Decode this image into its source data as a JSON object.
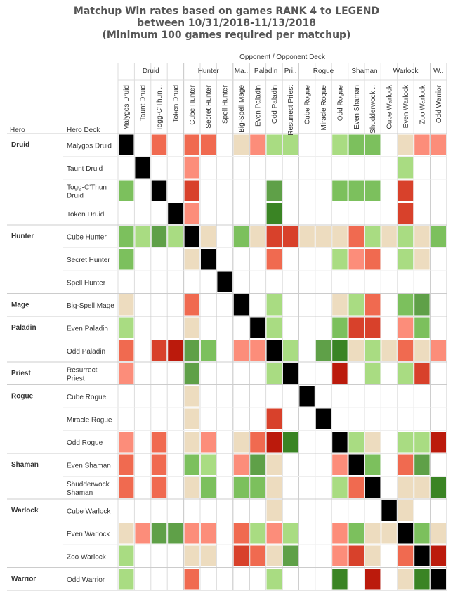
{
  "chart_data": {
    "type": "heatmap",
    "title": [
      "Matchup Win rates based on games RANK 4 to LEGEND",
      "between 10/31/2018-11/13/2018",
      "(Minimum 100 games required per matchup)"
    ],
    "column_header": "Opponent  /  Opponent Deck",
    "row_header_hero": "Hero",
    "row_header_deck": "Hero Deck",
    "column_groups": [
      {
        "label": "Druid",
        "span": 4
      },
      {
        "label": "Hunter",
        "span": 3
      },
      {
        "label": "Ma..",
        "span": 1
      },
      {
        "label": "Paladin",
        "span": 2
      },
      {
        "label": "Pri..",
        "span": 1
      },
      {
        "label": "Rogue",
        "span": 3
      },
      {
        "label": "Shaman",
        "span": 2
      },
      {
        "label": "Warlock",
        "span": 3
      },
      {
        "label": "W..",
        "span": 1
      }
    ],
    "columns": [
      "Malygos Druid",
      "Taunt Druid",
      "Togg-C'Thun ..",
      "Token Druid",
      "Cube Hunter",
      "Secret Hunter",
      "Spell Hunter",
      "Big-Spell Mage",
      "Even Paladin",
      "Odd Paladin",
      "Resurrect Priest",
      "Cube Rogue",
      "Miracle Rogue",
      "Odd Rogue",
      "Even Shaman",
      "Shudderwock ..",
      "Cube Warlock",
      "Even Warlock",
      "Zoo Warlock",
      "Odd Warrior"
    ],
    "row_groups": [
      {
        "label": "Druid",
        "span": 4
      },
      {
        "label": "Hunter",
        "span": 3
      },
      {
        "label": "Mage",
        "span": 1
      },
      {
        "label": "Paladin",
        "span": 2
      },
      {
        "label": "Priest",
        "span": 1
      },
      {
        "label": "Rogue",
        "span": 3
      },
      {
        "label": "Shaman",
        "span": 2
      },
      {
        "label": "Warlock",
        "span": 3
      },
      {
        "label": "Warrior",
        "span": 1
      }
    ],
    "rows": [
      {
        "label": [
          "Malygos Druid"
        ],
        "cells": [
          "X",
          "",
          "M",
          "",
          "M",
          "M",
          "",
          "T",
          "m",
          "l",
          "l",
          "",
          "",
          "l",
          "g",
          "g",
          "",
          "T",
          "m",
          "m"
        ]
      },
      {
        "label": [
          "Taunt Druid"
        ],
        "cells": [
          "",
          "X",
          "",
          "",
          "m",
          "",
          "",
          "",
          "",
          "",
          "",
          "",
          "",
          "",
          "",
          "",
          "",
          "l",
          "",
          ""
        ]
      },
      {
        "label": [
          "Togg-C'Thun",
          "Druid"
        ],
        "cells": [
          "g",
          "",
          "X",
          "",
          "R",
          "",
          "",
          "",
          "",
          "G",
          "",
          "",
          "",
          "g",
          "g",
          "g",
          "",
          "R",
          "",
          ""
        ]
      },
      {
        "label": [
          "Token Druid"
        ],
        "cells": [
          "",
          "",
          "",
          "X",
          "m",
          "",
          "",
          "",
          "",
          "D",
          "",
          "",
          "",
          "",
          "",
          "",
          "",
          "R",
          "",
          ""
        ]
      },
      {
        "label": [
          "Cube Hunter"
        ],
        "cells": [
          "g",
          "l",
          "G",
          "l",
          "X",
          "T",
          "",
          "g",
          "T",
          "R",
          "R",
          "T",
          "T",
          "T",
          "M",
          "l",
          "T",
          "l",
          "T",
          "g"
        ]
      },
      {
        "label": [
          "Secret Hunter"
        ],
        "cells": [
          "g",
          "",
          "",
          "",
          "T",
          "X",
          "",
          "",
          "",
          "M",
          "",
          "",
          "",
          "l",
          "m",
          "M",
          "",
          "l",
          "T",
          ""
        ]
      },
      {
        "label": [
          "Spell Hunter"
        ],
        "cells": [
          "",
          "",
          "",
          "",
          "",
          "",
          "X",
          "",
          "",
          "",
          "",
          "",
          "",
          "",
          "",
          "",
          "",
          "",
          "",
          ""
        ]
      },
      {
        "label": [
          "Big-Spell Mage"
        ],
        "cells": [
          "T",
          "",
          "",
          "",
          "M",
          "",
          "",
          "X",
          "",
          "l",
          "",
          "",
          "",
          "T",
          "l",
          "M",
          "",
          "g",
          "G",
          ""
        ]
      },
      {
        "label": [
          "Even Paladin"
        ],
        "cells": [
          "l",
          "",
          "",
          "",
          "T",
          "",
          "",
          "",
          "X",
          "l",
          "",
          "",
          "",
          "g",
          "R",
          "R",
          "",
          "m",
          "g",
          ""
        ]
      },
      {
        "label": [
          "Odd Paladin"
        ],
        "cells": [
          "M",
          "",
          "R",
          "B",
          "G",
          "g",
          "",
          "m",
          "m",
          "X",
          "l",
          "",
          "G",
          "D",
          "T",
          "l",
          "T",
          "M",
          "T",
          "m"
        ]
      },
      {
        "label": [
          "Resurrect",
          "Priest"
        ],
        "cells": [
          "m",
          "",
          "",
          "",
          "G",
          "",
          "",
          "",
          "",
          "l",
          "X",
          "",
          "",
          "B",
          "",
          "l",
          "",
          "l",
          "R",
          ""
        ]
      },
      {
        "label": [
          "Cube Rogue"
        ],
        "cells": [
          "",
          "",
          "",
          "",
          "T",
          "",
          "",
          "",
          "",
          "",
          "",
          "X",
          "",
          "",
          "",
          "",
          "",
          "",
          "",
          ""
        ]
      },
      {
        "label": [
          "Miracle Rogue"
        ],
        "cells": [
          "",
          "",
          "",
          "",
          "T",
          "",
          "",
          "",
          "",
          "R",
          "",
          "",
          "X",
          "",
          "",
          "",
          "",
          "",
          "",
          ""
        ]
      },
      {
        "label": [
          "Odd Rogue"
        ],
        "cells": [
          "m",
          "",
          "M",
          "",
          "T",
          "m",
          "",
          "T",
          "M",
          "B",
          "D",
          "",
          "",
          "X",
          "l",
          "T",
          "",
          "l",
          "l",
          "B"
        ]
      },
      {
        "label": [
          "Even Shaman"
        ],
        "cells": [
          "M",
          "",
          "M",
          "",
          "g",
          "l",
          "",
          "m",
          "G",
          "T",
          "",
          "",
          "",
          "m",
          "X",
          "g",
          "",
          "M",
          "G",
          ""
        ]
      },
      {
        "label": [
          "Shudderwock",
          "Shaman"
        ],
        "cells": [
          "M",
          "",
          "M",
          "",
          "T",
          "g",
          "",
          "g",
          "g",
          "T",
          "",
          "",
          "",
          "l",
          "M",
          "X",
          "",
          "T",
          "T",
          "D"
        ]
      },
      {
        "label": [
          "Cube Warlock"
        ],
        "cells": [
          "",
          "",
          "",
          "",
          "",
          "",
          "",
          "",
          "",
          "T",
          "",
          "",
          "",
          "",
          "",
          "",
          "X",
          "T",
          "",
          ""
        ]
      },
      {
        "label": [
          "Even Warlock"
        ],
        "cells": [
          "T",
          "m",
          "G",
          "G",
          "m",
          "m",
          "",
          "M",
          "l",
          "m",
          "l",
          "",
          "",
          "m",
          "g",
          "T",
          "T",
          "X",
          "g",
          "T"
        ]
      },
      {
        "label": [
          "Zoo Warlock"
        ],
        "cells": [
          "l",
          "",
          "",
          "",
          "T",
          "T",
          "",
          "R",
          "M",
          "T",
          "G",
          "",
          "",
          "m",
          "R",
          "T",
          "",
          "M",
          "X",
          "B"
        ]
      },
      {
        "label": [
          "Odd Warrior"
        ],
        "cells": [
          "l",
          "",
          "",
          "",
          "M",
          "",
          "",
          "",
          "",
          "l",
          "",
          "",
          "",
          "D",
          "",
          "B",
          "",
          "T",
          "D",
          "X"
        ]
      }
    ],
    "legend": {
      "X": "#000000",
      "B": "#bb1a0c",
      "R": "#d8412b",
      "M": "#f06a50",
      "m": "#fc8d7a",
      "T": "#eddcbf",
      "l": "#a9dc82",
      "g": "#7cc05d",
      "G": "#5fa048",
      "D": "#3a8424"
    }
  }
}
